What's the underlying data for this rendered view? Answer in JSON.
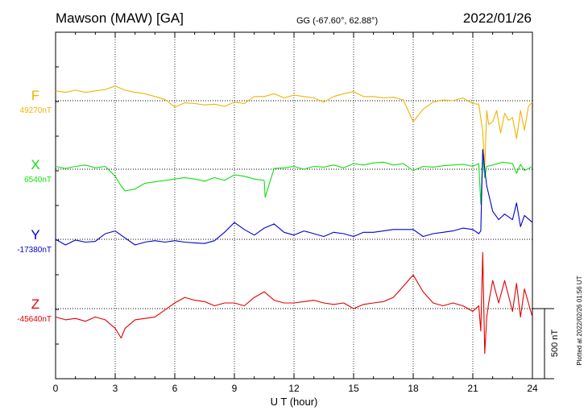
{
  "header": {
    "station": "Mawson (MAW)  [GA]",
    "coords": "GG (-67.60°,  62.88°)",
    "date": "2022/01/26"
  },
  "plotted_note": "Plotted at 2022/02/26 01:56 UT",
  "colors": {
    "F": "#f0b400",
    "X": "#10e010",
    "Y": "#0000d0",
    "Z": "#e00000",
    "axis": "#000000",
    "grid": "#000000"
  },
  "chart_data": {
    "type": "line",
    "title": "Mawson (MAW)  [GA]",
    "xlabel": "U T (hour)",
    "xlim": [
      0,
      24
    ],
    "x_ticks": [
      "0",
      "3",
      "6",
      "9",
      "12",
      "15",
      "18",
      "21",
      "24"
    ],
    "scale_bar": {
      "label": "500 nT",
      "value_nT": 500
    },
    "grid": true,
    "series": [
      {
        "name": "F",
        "baseline_label": "49270nT",
        "baseline": 49270,
        "x": [
          0,
          0.5,
          1,
          1.5,
          2,
          2.5,
          3,
          3.5,
          4,
          4.5,
          5,
          5.5,
          6,
          6.5,
          7,
          7.5,
          8,
          8.5,
          9,
          9.5,
          10,
          10.5,
          11,
          11.5,
          12,
          12.5,
          13,
          13.5,
          14,
          14.5,
          15,
          15.5,
          16,
          16.5,
          17,
          17.5,
          18,
          18.5,
          19,
          19.5,
          20,
          20.5,
          21,
          21.3,
          21.5,
          21.6,
          21.7,
          21.8,
          22,
          22.2,
          22.4,
          22.6,
          22.8,
          23,
          23.2,
          23.4,
          23.6,
          23.8,
          24
        ],
        "values": [
          49340,
          49330,
          49345,
          49330,
          49340,
          49350,
          49375,
          49345,
          49330,
          49320,
          49300,
          49280,
          49225,
          49255,
          49250,
          49240,
          49245,
          49230,
          49260,
          49250,
          49300,
          49300,
          49320,
          49290,
          49310,
          49300,
          49290,
          49260,
          49300,
          49320,
          49335,
          49300,
          49300,
          49290,
          49295,
          49275,
          49120,
          49210,
          49260,
          49275,
          49270,
          49290,
          49250,
          49245,
          49050,
          48780,
          49200,
          49100,
          49120,
          49200,
          49040,
          49180,
          49130,
          49150,
          49000,
          49200,
          49060,
          49230,
          49260
        ]
      },
      {
        "name": "X",
        "baseline_label": "6540nT",
        "baseline": 6540,
        "x": [
          0,
          0.5,
          1,
          1.5,
          2,
          2.5,
          3,
          3.3,
          3.5,
          4,
          4.5,
          5,
          5.5,
          6,
          6.5,
          7,
          7.5,
          8,
          8.5,
          9,
          9.5,
          10,
          10.5,
          10.55,
          11,
          11.5,
          12,
          12.5,
          13,
          13.5,
          14,
          14.5,
          15,
          15.5,
          16,
          16.5,
          17,
          17.5,
          18,
          18.5,
          19,
          19.5,
          20,
          20.5,
          21,
          21.3,
          21.4,
          21.5,
          21.6,
          21.7,
          22,
          22.5,
          23,
          23.2,
          23.4,
          23.6,
          24
        ],
        "values": [
          6560,
          6545,
          6560,
          6570,
          6550,
          6560,
          6490,
          6420,
          6385,
          6400,
          6440,
          6450,
          6460,
          6470,
          6480,
          6470,
          6455,
          6480,
          6460,
          6500,
          6490,
          6470,
          6460,
          6340,
          6545,
          6550,
          6560,
          6540,
          6560,
          6555,
          6570,
          6550,
          6580,
          6570,
          6585,
          6590,
          6570,
          6580,
          6530,
          6560,
          6555,
          6565,
          6570,
          6575,
          6560,
          6580,
          6290,
          6620,
          6480,
          6560,
          6570,
          6590,
          6580,
          6510,
          6575,
          6530,
          6560
        ]
      },
      {
        "name": "Y",
        "baseline_label": "-17380nT",
        "baseline": -17380,
        "x": [
          0,
          0.5,
          1,
          1.5,
          2,
          2.5,
          3,
          3.5,
          4,
          4.5,
          5,
          5.5,
          6,
          6.5,
          7,
          7.5,
          8,
          8.5,
          9,
          9.5,
          10,
          10.5,
          11,
          11.5,
          12,
          12.5,
          13,
          13.5,
          14,
          14.5,
          15,
          15.5,
          16,
          16.5,
          17,
          17.5,
          18,
          18.5,
          19,
          19.5,
          20,
          20.5,
          21,
          21.3,
          21.4,
          21.5,
          21.6,
          21.7,
          22,
          22.3,
          22.6,
          23,
          23.2,
          23.4,
          23.6,
          24
        ],
        "values": [
          -17380,
          -17420,
          -17385,
          -17400,
          -17395,
          -17340,
          -17320,
          -17370,
          -17420,
          -17400,
          -17390,
          -17400,
          -17390,
          -17400,
          -17405,
          -17410,
          -17390,
          -17330,
          -17260,
          -17310,
          -17350,
          -17300,
          -17270,
          -17330,
          -17350,
          -17320,
          -17340,
          -17360,
          -17330,
          -17340,
          -17360,
          -17330,
          -17330,
          -17320,
          -17310,
          -17310,
          -17310,
          -17360,
          -17340,
          -17330,
          -17320,
          -17300,
          -17310,
          -17340,
          -17320,
          -16740,
          -16880,
          -17000,
          -17180,
          -17240,
          -17200,
          -17240,
          -17120,
          -17290,
          -17210,
          -17260
        ]
      },
      {
        "name": "Z",
        "baseline_label": "-45640nT",
        "baseline": -45640,
        "x": [
          0,
          0.5,
          1,
          1.5,
          2,
          2.5,
          3,
          3.3,
          3.5,
          4,
          4.5,
          5,
          5.5,
          6,
          6.5,
          7,
          7.5,
          8,
          8.5,
          9,
          9.5,
          10,
          10.5,
          11,
          11.5,
          12,
          12.5,
          13,
          13.5,
          14,
          14.5,
          15,
          15.5,
          16,
          16.5,
          17,
          17.5,
          18,
          18.5,
          19,
          19.5,
          20,
          20.5,
          21,
          21.3,
          21.4,
          21.5,
          21.6,
          21.7,
          21.8,
          22,
          22.3,
          22.6,
          23,
          23.2,
          23.4,
          23.6,
          24
        ],
        "values": [
          -45700,
          -45720,
          -45710,
          -45730,
          -45700,
          -45720,
          -45780,
          -45850,
          -45780,
          -45720,
          -45710,
          -45700,
          -45650,
          -45600,
          -45560,
          -45580,
          -45590,
          -45620,
          -45600,
          -45600,
          -45620,
          -45560,
          -45520,
          -45580,
          -45600,
          -45600,
          -45590,
          -45580,
          -45600,
          -45610,
          -45600,
          -45640,
          -45610,
          -45600,
          -45590,
          -45560,
          -45480,
          -45400,
          -45520,
          -45600,
          -45620,
          -45600,
          -45620,
          -45660,
          -45620,
          -45800,
          -45240,
          -45960,
          -45700,
          -45600,
          -45440,
          -45600,
          -45440,
          -45660,
          -45460,
          -45700,
          -45500,
          -45700
        ]
      }
    ]
  }
}
